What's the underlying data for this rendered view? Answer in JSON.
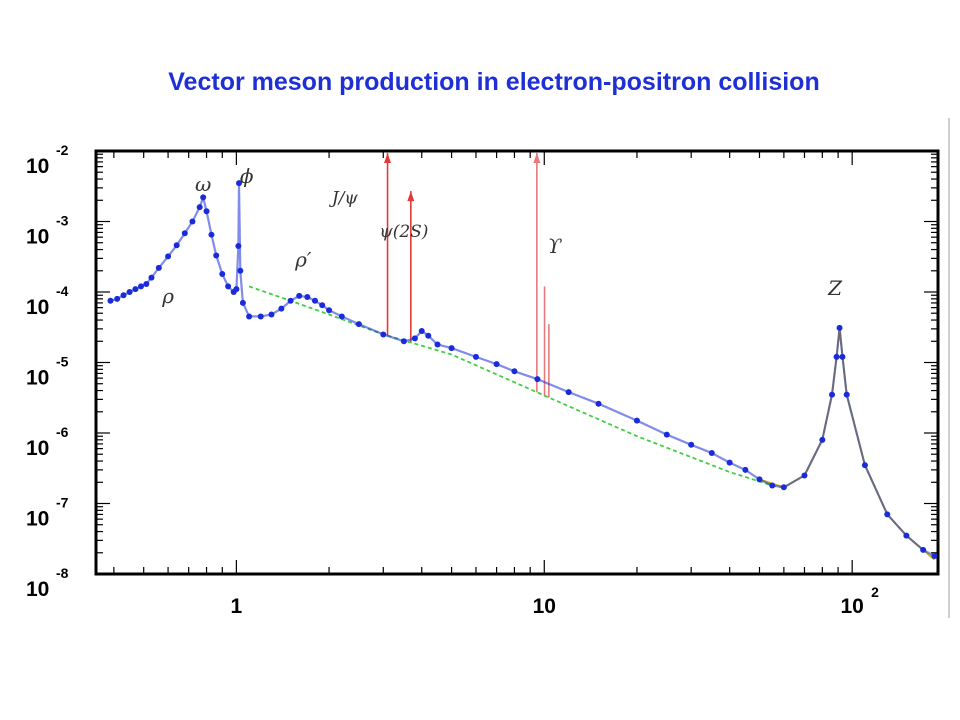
{
  "page": {
    "title": "Vector meson production in electron-positron collision"
  },
  "chart_data": {
    "type": "scatter",
    "title": "Vector meson production in electron-positron collision",
    "xlabel": "",
    "ylabel": "",
    "x_scale": "log",
    "y_scale": "log",
    "xlim": [
      0.35,
      190
    ],
    "ylim": [
      1e-08,
      0.01
    ],
    "x_ticks": [
      {
        "value": 1,
        "label": "1",
        "exp": ""
      },
      {
        "value": 10,
        "label": "10",
        "exp": ""
      },
      {
        "value": 100,
        "label": "10",
        "exp": "2"
      }
    ],
    "y_ticks": [
      {
        "value": 0.01,
        "label": "10",
        "exp": "-2"
      },
      {
        "value": 0.001,
        "label": "10",
        "exp": "-3"
      },
      {
        "value": 0.0001,
        "label": "10",
        "exp": "-4"
      },
      {
        "value": 1e-05,
        "label": "10",
        "exp": "-5"
      },
      {
        "value": 1e-06,
        "label": "10",
        "exp": "-6"
      },
      {
        "value": 1e-07,
        "label": "10",
        "exp": "-7"
      },
      {
        "value": 1e-08,
        "label": "10",
        "exp": "-8"
      }
    ],
    "resonances": [
      {
        "label": "ω",
        "x": 0.78,
        "y": 0.0027
      },
      {
        "label": "ϕ",
        "x": 1.08,
        "y": 0.0035
      },
      {
        "label": "ρ",
        "x": 0.6,
        "y": 7e-05
      },
      {
        "label": "ρ′",
        "x": 1.65,
        "y": 0.00023
      },
      {
        "label": "J/ψ",
        "x": 2.25,
        "y": 0.0018
      },
      {
        "label": "ψ(2S)",
        "x": 3.5,
        "y": 0.0006
      },
      {
        "label": "ϒ",
        "x": 10.8,
        "y": 0.00036
      },
      {
        "label": "Z",
        "x": 88,
        "y": 9e-05
      }
    ],
    "series": [
      {
        "color": "#1a2bd9",
        "marker": "dot",
        "points": [
          [
            0.39,
            7.5e-05
          ],
          [
            0.41,
            8e-05
          ],
          [
            0.43,
            9e-05
          ],
          [
            0.45,
            0.0001
          ],
          [
            0.47,
            0.00011
          ],
          [
            0.49,
            0.00012
          ],
          [
            0.51,
            0.00013
          ],
          [
            0.53,
            0.00016
          ],
          [
            0.56,
            0.00022
          ],
          [
            0.6,
            0.00032
          ],
          [
            0.64,
            0.00046
          ],
          [
            0.68,
            0.00068
          ],
          [
            0.72,
            0.001
          ],
          [
            0.76,
            0.0016
          ],
          [
            0.78,
            0.0022
          ],
          [
            0.8,
            0.0014
          ],
          [
            0.83,
            0.00065
          ],
          [
            0.86,
            0.00033
          ],
          [
            0.9,
            0.00018
          ],
          [
            0.94,
            0.00012
          ],
          [
            0.98,
            0.0001
          ],
          [
            1.0,
            0.00011
          ],
          [
            1.015,
            0.00045
          ],
          [
            1.02,
            0.0035
          ],
          [
            1.03,
            0.0002
          ],
          [
            1.05,
            7e-05
          ],
          [
            1.1,
            4.5e-05
          ],
          [
            1.2,
            4.5e-05
          ],
          [
            1.3,
            4.8e-05
          ],
          [
            1.4,
            5.8e-05
          ],
          [
            1.5,
            7.5e-05
          ],
          [
            1.6,
            8.8e-05
          ],
          [
            1.7,
            8.5e-05
          ],
          [
            1.8,
            7.5e-05
          ],
          [
            1.9,
            6.5e-05
          ],
          [
            2.0,
            5.5e-05
          ],
          [
            2.2,
            4.5e-05
          ],
          [
            2.5,
            3.5e-05
          ],
          [
            3.0,
            2.5e-05
          ],
          [
            3.5,
            2e-05
          ],
          [
            3.8,
            2.2e-05
          ],
          [
            4.0,
            2.8e-05
          ],
          [
            4.2,
            2.4e-05
          ],
          [
            4.5,
            1.8e-05
          ],
          [
            5.0,
            1.6e-05
          ],
          [
            6.0,
            1.2e-05
          ],
          [
            7.0,
            9.5e-06
          ],
          [
            8.0,
            7.5e-06
          ],
          [
            9.5,
            5.8e-06
          ],
          [
            12,
            3.8e-06
          ],
          [
            15,
            2.6e-06
          ],
          [
            20,
            1.5e-06
          ],
          [
            25,
            9.5e-07
          ],
          [
            30,
            6.8e-07
          ],
          [
            35,
            5.2e-07
          ],
          [
            40,
            3.8e-07
          ],
          [
            45,
            3e-07
          ],
          [
            50,
            2.2e-07
          ],
          [
            55,
            1.8e-07
          ],
          [
            60,
            1.7e-07
          ],
          [
            70,
            2.5e-07
          ],
          [
            80,
            8e-07
          ],
          [
            86,
            3.5e-06
          ],
          [
            89,
            1.2e-05
          ],
          [
            91,
            3.1e-05
          ],
          [
            93,
            1.2e-05
          ],
          [
            96,
            3.5e-06
          ],
          [
            110,
            3.5e-07
          ],
          [
            130,
            7e-08
          ],
          [
            150,
            3.5e-08
          ],
          [
            170,
            2.2e-08
          ],
          [
            185,
            1.8e-08
          ]
        ]
      }
    ],
    "curves": [
      {
        "color": "#3fcf3f",
        "style": "dashed",
        "points": [
          [
            1.1,
            0.00012
          ],
          [
            1.5,
            7.5e-05
          ],
          [
            2,
            4.8e-05
          ],
          [
            3,
            2.5e-05
          ],
          [
            5,
            1.3e-05
          ],
          [
            10,
            3.4e-06
          ],
          [
            20,
            9e-07
          ],
          [
            40,
            2.8e-07
          ],
          [
            55,
            1.8e-07
          ],
          [
            60,
            1.7e-07
          ],
          [
            70,
            2.5e-07
          ],
          [
            80,
            8e-07
          ],
          [
            86,
            3.5e-06
          ],
          [
            89,
            1.2e-05
          ],
          [
            91,
            3.1e-05
          ],
          [
            93,
            1.2e-05
          ],
          [
            96,
            3.5e-06
          ],
          [
            110,
            3.5e-07
          ],
          [
            130,
            7e-08
          ],
          [
            150,
            3.5e-08
          ],
          [
            185,
            1.6e-08
          ]
        ]
      },
      {
        "color": "#d4b400",
        "style": "solid",
        "points": [
          [
            50,
            2.2e-07
          ],
          [
            60,
            1.7e-07
          ],
          [
            70,
            2.5e-07
          ],
          [
            80,
            8e-07
          ],
          [
            86,
            3.5e-06
          ],
          [
            89,
            1.2e-05
          ],
          [
            91,
            3.1e-05
          ],
          [
            93,
            1.2e-05
          ],
          [
            96,
            3.5e-06
          ],
          [
            110,
            3.5e-07
          ],
          [
            130,
            7e-08
          ],
          [
            150,
            3.5e-08
          ],
          [
            185,
            1.6e-08
          ]
        ]
      }
    ],
    "spikes": [
      {
        "x": 3.097,
        "y": 0.01,
        "color": "#e23a3a"
      },
      {
        "x": 3.686,
        "y": 0.0027,
        "color": "#e23a3a"
      },
      {
        "x": 9.46,
        "y": 0.01,
        "color": "#e8787a"
      },
      {
        "x": 10.02,
        "y": 0.00012,
        "color": "#e8787a"
      },
      {
        "x": 10.35,
        "y": 3.5e-05,
        "color": "#e8787a"
      }
    ]
  }
}
